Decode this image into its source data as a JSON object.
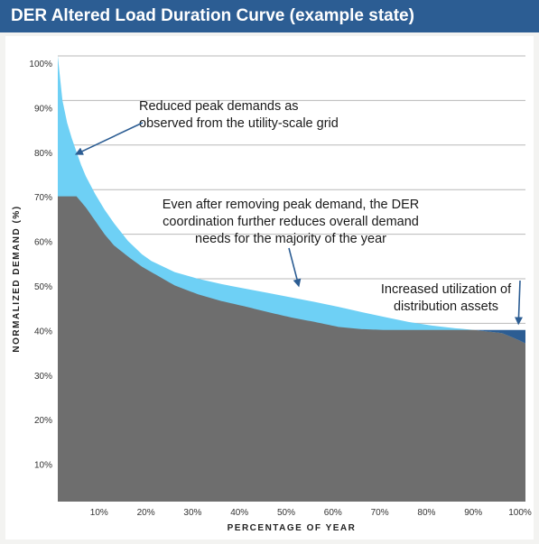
{
  "title": "DER Altered Load Duration Curve (example state)",
  "chart_data": {
    "type": "area",
    "title": "DER Altered Load Duration Curve (example state)",
    "xlabel": "PERCENTAGE OF YEAR",
    "ylabel": "NORMALIZED DEMAND (%)",
    "xlim": [
      0,
      100
    ],
    "ylim": [
      0,
      100
    ],
    "x_ticks": [
      "10%",
      "20%",
      "30%",
      "40%",
      "50%",
      "60%",
      "70%",
      "80%",
      "90%",
      "100%"
    ],
    "y_ticks": [
      "10%",
      "20%",
      "30%",
      "40%",
      "50%",
      "60%",
      "70%",
      "80%",
      "90%",
      "100%"
    ],
    "grid": "horizontal",
    "colors": {
      "original_load": "#6ed0f5",
      "der_altered_load": "#6e6e6e",
      "increased_utilization": "#2c5d93",
      "annotation": "#2c5d93",
      "title_bar": "#2c5d93"
    },
    "series": [
      {
        "x": [
          0,
          0.5,
          1,
          2,
          3,
          4,
          5,
          6,
          8,
          10,
          12,
          15,
          18,
          20,
          25,
          30,
          35,
          40,
          45,
          50,
          55,
          60,
          65,
          70,
          75,
          80,
          85,
          90,
          95,
          98,
          100
        ],
        "values": [
          100,
          95,
          90,
          85,
          81.5,
          78.5,
          75.5,
          73,
          69,
          65.5,
          62.5,
          58.5,
          55.5,
          54,
          51.5,
          50,
          48.8,
          47.8,
          46.8,
          45.8,
          44.8,
          43.7,
          42.5,
          41.4,
          40.3,
          39.5,
          38.9,
          38.4,
          37.8,
          36.5,
          35.5
        ]
      },
      {
        "x": [
          0,
          3,
          4,
          6,
          8,
          10,
          12,
          15,
          18,
          20,
          25,
          30,
          35,
          40,
          45,
          50,
          55,
          60,
          65,
          70,
          75,
          80,
          85,
          90,
          95,
          98,
          100
        ],
        "values": [
          68.5,
          68.5,
          68.5,
          66,
          63,
          60,
          57.5,
          55,
          52.7,
          51.5,
          48.5,
          46.5,
          45,
          43.8,
          42.5,
          41.3,
          40.3,
          39.2,
          38.7,
          38.5,
          38.5,
          38.5,
          38.5,
          38.5,
          38.5,
          38.5,
          38.5
        ]
      }
    ],
    "annotations": [
      {
        "lines": [
          "Reduced peak demands as",
          "observed from the utility-scale grid"
        ],
        "arrow_to": [
          4,
          78
        ]
      },
      {
        "lines": [
          "Even after removing peak demand, the DER",
          "coordination further reduces overall demand",
          "needs for the majority of the year"
        ],
        "arrow_to": [
          51.5,
          48.5
        ]
      },
      {
        "lines": [
          "Increased utilization of",
          "distribution assets"
        ],
        "arrow_to": [
          98.5,
          40
        ]
      }
    ]
  }
}
